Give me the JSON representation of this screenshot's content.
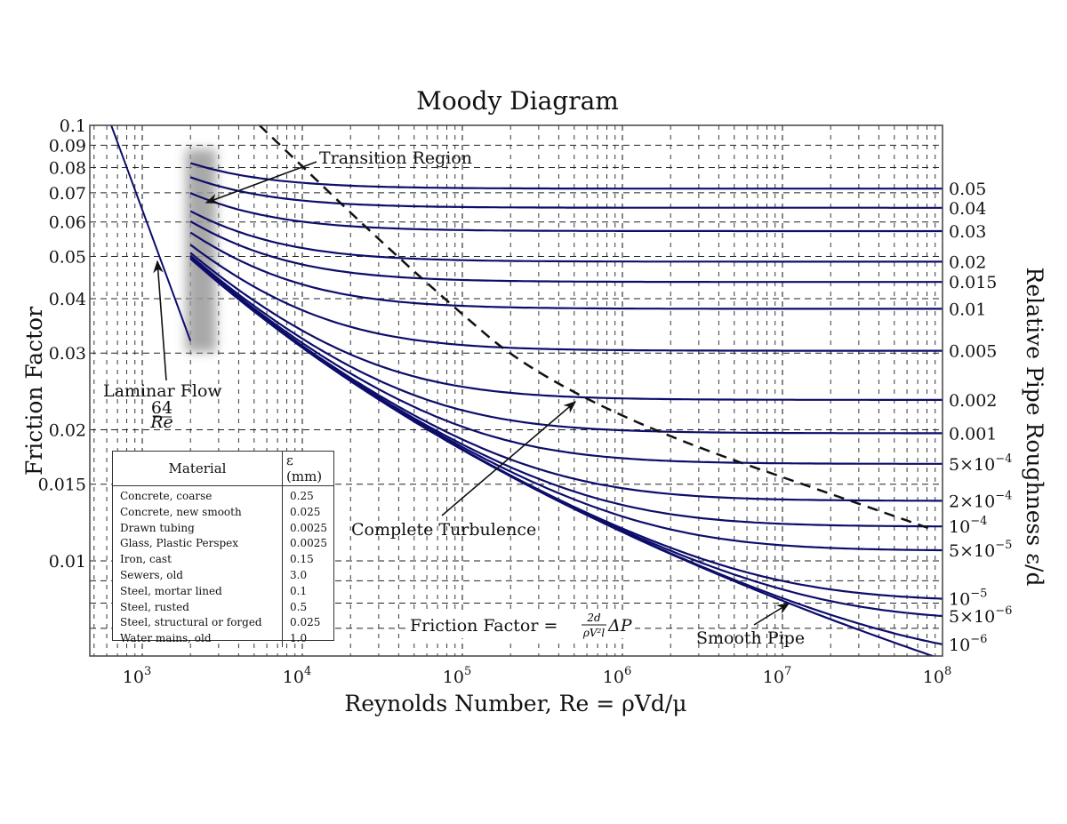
{
  "chart_data": {
    "type": "line",
    "title": "Moody Diagram",
    "xlabel": "Reynolds Number, Re = ρVd/μ",
    "ylabel": "Friction Factor",
    "y2label": "Relative Pipe Roughness ε/d",
    "xscale": "log",
    "yscale": "log",
    "xlim": [
      500,
      100000000
    ],
    "ylim": [
      0.006,
      0.1
    ],
    "grid": "dashed major and minor",
    "x_ticks": [
      {
        "value": 1000,
        "base": "10",
        "exp": "3"
      },
      {
        "value": 10000,
        "base": "10",
        "exp": "4"
      },
      {
        "value": 100000,
        "base": "10",
        "exp": "5"
      },
      {
        "value": 1000000,
        "base": "10",
        "exp": "6"
      },
      {
        "value": 10000000,
        "base": "10",
        "exp": "7"
      },
      {
        "value": 100000000,
        "base": "10",
        "exp": "8"
      }
    ],
    "y_ticks": [
      {
        "value": 0.1,
        "label": "0.1"
      },
      {
        "value": 0.09,
        "label": "0.09"
      },
      {
        "value": 0.08,
        "label": "0.08"
      },
      {
        "value": 0.07,
        "label": "0.07"
      },
      {
        "value": 0.06,
        "label": "0.06"
      },
      {
        "value": 0.05,
        "label": "0.05"
      },
      {
        "value": 0.04,
        "label": "0.04"
      },
      {
        "value": 0.03,
        "label": "0.03"
      },
      {
        "value": 0.02,
        "label": "0.02"
      },
      {
        "value": 0.015,
        "label": "0.015"
      },
      {
        "value": 0.01,
        "label": "0.01"
      }
    ],
    "y_minor_grid": [
      0.009,
      0.008,
      0.007
    ],
    "laminar": {
      "label": "Laminar Flow",
      "formula_num": "64",
      "formula_den": "Re",
      "re_range": [
        640,
        2000
      ]
    },
    "transition_region": {
      "label": "Transition Region",
      "re_range": [
        2000,
        3000
      ]
    },
    "turbulent_re_range": [
      2000,
      100000000
    ],
    "roughness_series": [
      {
        "value": 0.05,
        "label": "0.05"
      },
      {
        "value": 0.04,
        "label": "0.04"
      },
      {
        "value": 0.03,
        "label": "0.03"
      },
      {
        "value": 0.02,
        "label": "0.02"
      },
      {
        "value": 0.015,
        "label": "0.015"
      },
      {
        "value": 0.01,
        "label": "0.01"
      },
      {
        "value": 0.005,
        "label": "0.005"
      },
      {
        "value": 0.002,
        "label": "0.002"
      },
      {
        "value": 0.001,
        "label": "0.001"
      },
      {
        "value": 0.0005,
        "label": "5×10",
        "exp": "−4"
      },
      {
        "value": 0.0002,
        "label": "2×10",
        "exp": "−4"
      },
      {
        "value": 0.0001,
        "label": "10",
        "exp": "−4"
      },
      {
        "value": 5e-05,
        "label": "5×10",
        "exp": "−5"
      },
      {
        "value": 1e-05,
        "label": "10",
        "exp": "−5"
      },
      {
        "value": 5e-06,
        "label": "5×10",
        "exp": "−6"
      },
      {
        "value": 1e-06,
        "label": "10",
        "exp": "−6"
      },
      {
        "value": 0,
        "label": ""
      }
    ],
    "complete_turbulence_boundary": {
      "label": "Complete Turbulence",
      "points": [
        [
          5400,
          0.1
        ],
        [
          46000,
          0.047
        ],
        [
          430000,
          0.0233
        ],
        [
          87000000,
          0.0118
        ]
      ]
    },
    "smooth_pipe": {
      "label": "Smooth Pipe"
    },
    "formula_annotation": {
      "lhs": "Friction Factor = ",
      "num": "2d",
      "den": "ρV²l",
      "rhs": "ΔP"
    },
    "colors": {
      "curve": "#0d0d6b",
      "grid": "#222222",
      "boundary": "#111111",
      "transition_shade": "#9a9a9a"
    }
  },
  "legend_table": {
    "headers": {
      "material": "Material",
      "epsilon": "ε (mm)"
    },
    "rows": [
      {
        "material": "Concrete, coarse",
        "epsilon": "0.25"
      },
      {
        "material": "Concrete, new smooth",
        "epsilon": "0.025"
      },
      {
        "material": "Drawn tubing",
        "epsilon": "0.0025"
      },
      {
        "material": "Glass, Plastic Perspex",
        "epsilon": "0.0025"
      },
      {
        "material": "Iron, cast",
        "epsilon": "0.15"
      },
      {
        "material": "Sewers, old",
        "epsilon": "3.0"
      },
      {
        "material": "Steel, mortar lined",
        "epsilon": "0.1"
      },
      {
        "material": "Steel, rusted",
        "epsilon": "0.5"
      },
      {
        "material": "Steel, structural or forged",
        "epsilon": "0.025"
      },
      {
        "material": "Water mains, old",
        "epsilon": "1.0"
      }
    ]
  }
}
